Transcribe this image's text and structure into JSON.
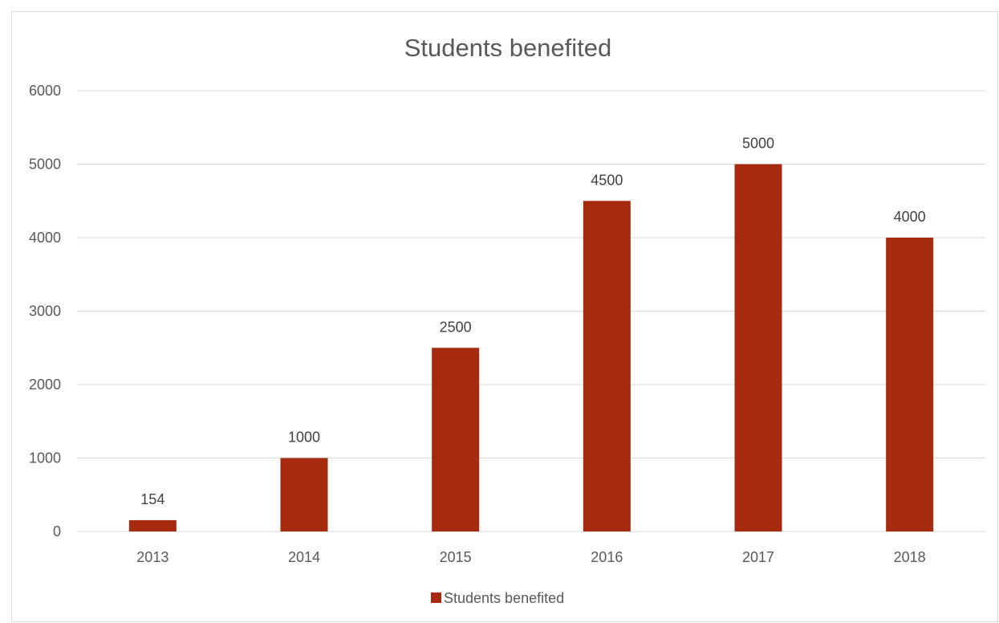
{
  "chart_data": {
    "type": "bar",
    "title": "Students benefited",
    "xlabel": "",
    "ylabel": "",
    "categories": [
      "2013",
      "2014",
      "2015",
      "2016",
      "2017",
      "2018"
    ],
    "series": [
      {
        "name": "Students benefited",
        "values": [
          154,
          1000,
          2500,
          4500,
          5000,
          4000
        ],
        "data_labels": [
          "154",
          "1000",
          "2500",
          "4500",
          "5000",
          "4000"
        ],
        "color": "#a52a0e"
      }
    ],
    "ylim": [
      0,
      6000
    ],
    "y_ticks": [
      0,
      1000,
      2000,
      3000,
      4000,
      5000,
      6000
    ],
    "y_tick_labels": [
      "0",
      "1000",
      "2000",
      "3000",
      "4000",
      "5000",
      "6000"
    ],
    "grid": true,
    "legend": {
      "position": "bottom",
      "label": "Students benefited"
    }
  }
}
